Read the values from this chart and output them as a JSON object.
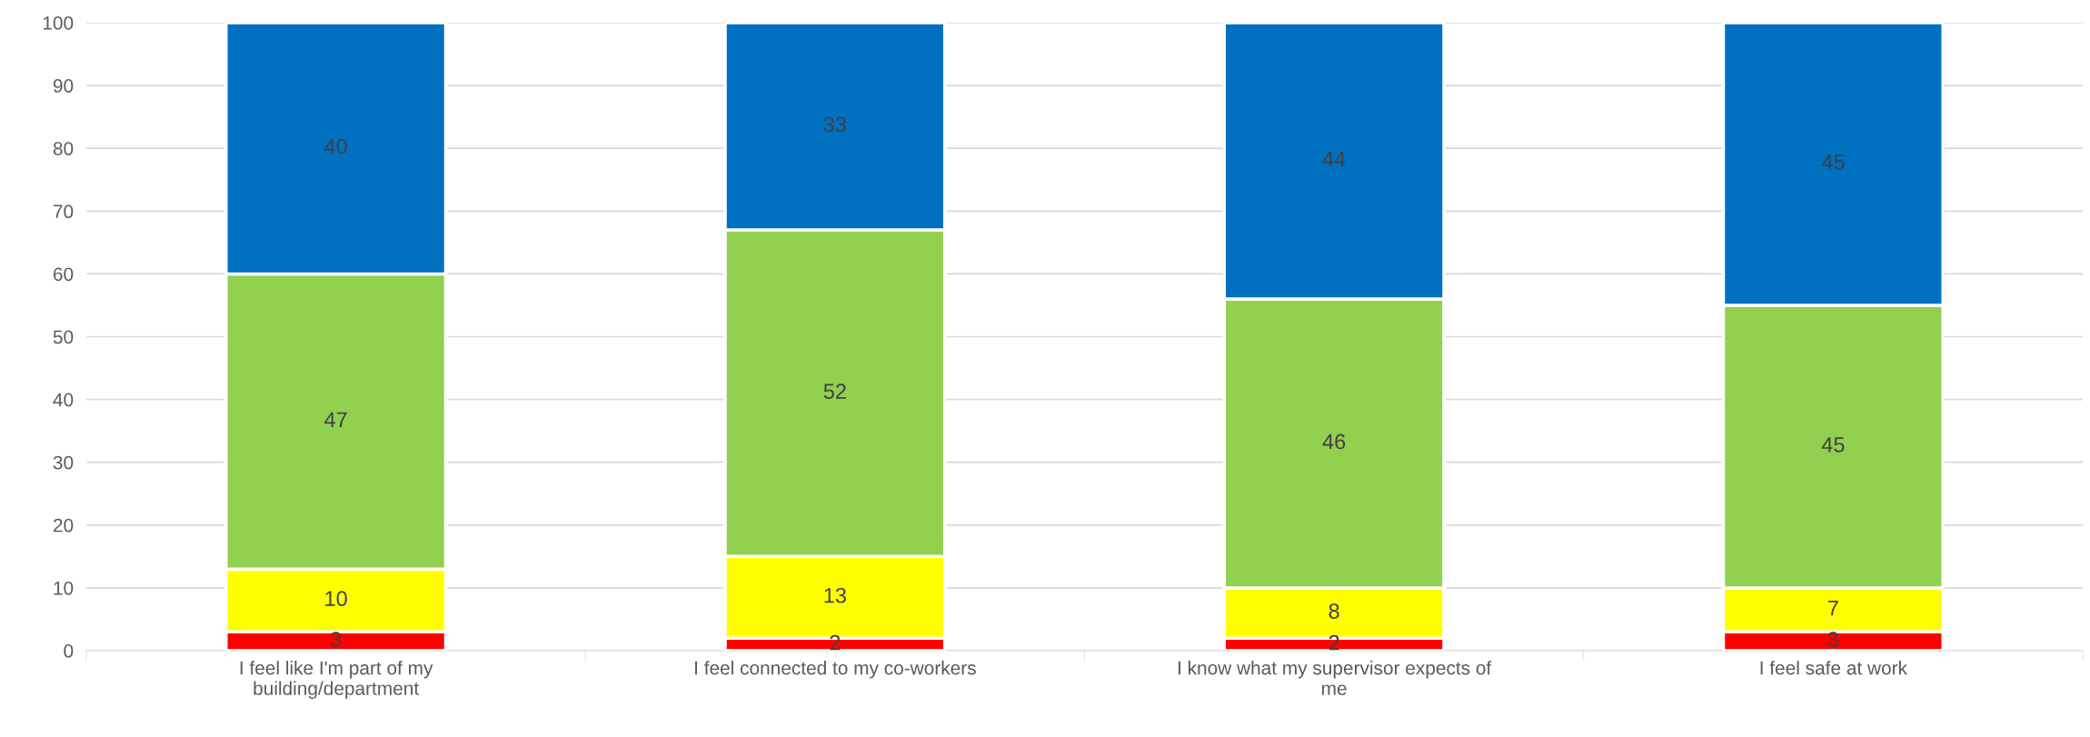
{
  "chart_data": {
    "type": "bar",
    "stacked": true,
    "categories": [
      "I feel like I'm part of my building/department",
      "I feel connected to my co-workers",
      "I know what my supervisor expects of me",
      "I feel safe at work"
    ],
    "series": [
      {
        "color": "#ff0000",
        "values": [
          3,
          2,
          2,
          3
        ]
      },
      {
        "color": "#ffff00",
        "values": [
          10,
          13,
          8,
          7
        ]
      },
      {
        "color": "#92d050",
        "values": [
          47,
          52,
          46,
          45
        ]
      },
      {
        "color": "#0070c0",
        "values": [
          40,
          33,
          44,
          45
        ]
      }
    ],
    "ylim": [
      0,
      100
    ],
    "yticks": [
      0,
      10,
      20,
      30,
      40,
      50,
      60,
      70,
      80,
      90,
      100
    ],
    "grid": "y",
    "data_labels": true
  }
}
